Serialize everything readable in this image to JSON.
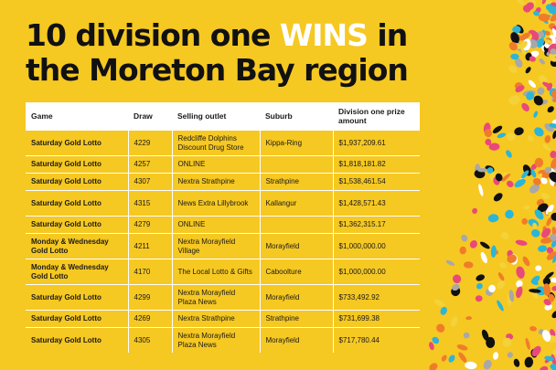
{
  "headline": {
    "line1_pre": "10 division one ",
    "line1_highlight": "WINS",
    "line1_post": " in",
    "line2": "the Moreton Bay region"
  },
  "table": {
    "headers": {
      "game": "Game",
      "draw": "Draw",
      "outlet": "Selling outlet",
      "suburb": "Suburb",
      "prize": "Division one prize amount"
    },
    "rows": [
      {
        "game": "Saturday Gold Lotto",
        "draw": "4229",
        "outlet": "Redcliffe Dolphins Discount Drug Store",
        "suburb": "Kippa-Ring",
        "prize": "$1,937,209.61"
      },
      {
        "game": "Saturday Gold Lotto",
        "draw": "4257",
        "outlet": "ONLINE",
        "suburb": "",
        "prize": "$1,818,181.82"
      },
      {
        "game": "Saturday Gold Lotto",
        "draw": "4307",
        "outlet": "Nextra Strathpine",
        "suburb": "Strathpine",
        "prize": "$1,538,461.54"
      },
      {
        "game": "Saturday Gold Lotto",
        "draw": "4315",
        "outlet": "News Extra Lillybrook",
        "suburb": "Kallangur",
        "prize": "$1,428,571.43"
      },
      {
        "game": "Saturday Gold Lotto",
        "draw": "4279",
        "outlet": "ONLINE",
        "suburb": "",
        "prize": "$1,362,315.17"
      },
      {
        "game": "Monday & Wednesday Gold Lotto",
        "draw": "4211",
        "outlet": "Nextra Morayfield Village",
        "suburb": "Morayfield",
        "prize": "$1,000,000.00"
      },
      {
        "game": "Monday & Wednesday Gold Lotto",
        "draw": "4170",
        "outlet": "The Local Lotto & Gifts",
        "suburb": "Caboolture",
        "prize": "$1,000,000.00"
      },
      {
        "game": "Saturday Gold Lotto",
        "draw": "4299",
        "outlet": "Nextra Morayfield Plaza News",
        "suburb": "Morayfield",
        "prize": "$733,492.92"
      },
      {
        "game": "Saturday Gold Lotto",
        "draw": "4269",
        "outlet": "Nextra Strathpine",
        "suburb": "Strathpine",
        "prize": "$731,699.38"
      },
      {
        "game": "Saturday Gold Lotto",
        "draw": "4305",
        "outlet": "Nextra Morayfield Plaza News",
        "suburb": "Morayfield",
        "prize": "$717,780.44"
      }
    ]
  },
  "colors": {
    "background": "#F6C822",
    "highlight": "#FFFFFF",
    "text": "#111111",
    "confetti": [
      "#E8497A",
      "#2BB5D8",
      "#F07C2A",
      "#FFFFFF",
      "#A8A8A8",
      "#111111",
      "#F4D23A"
    ]
  }
}
